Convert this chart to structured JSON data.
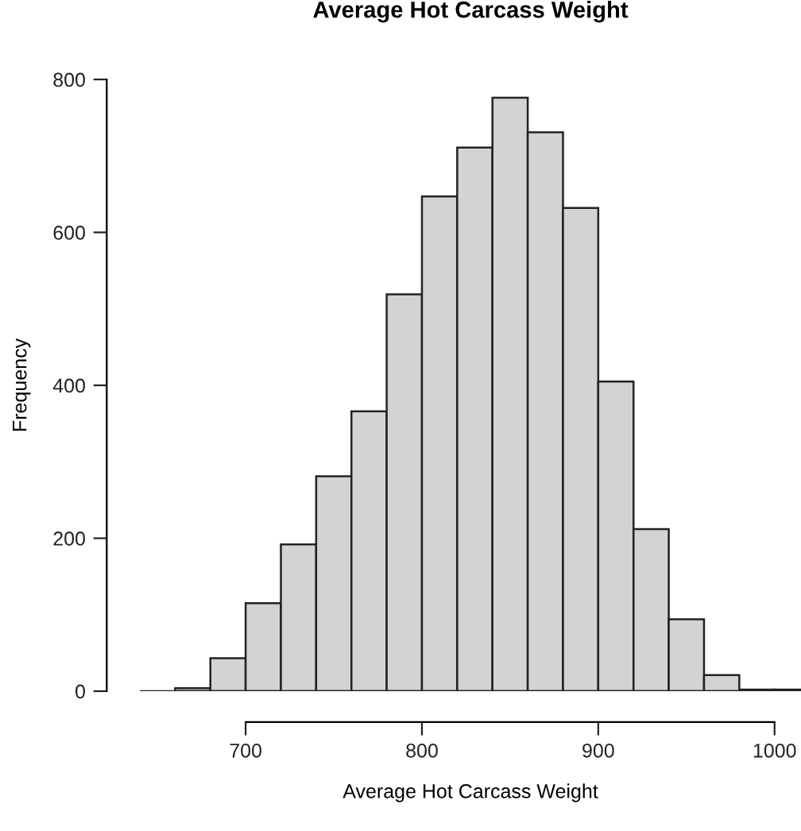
{
  "chart_data": {
    "type": "histogram",
    "title": "Average Hot Carcass Weight",
    "xlabel": "Average Hot Carcass Weight",
    "ylabel": "Frequency",
    "bins": [
      660,
      680,
      700,
      720,
      740,
      760,
      780,
      800,
      820,
      840,
      860,
      880,
      900,
      920,
      940,
      960,
      980,
      1000,
      1020
    ],
    "values": [
      4,
      43,
      115,
      192,
      281,
      366,
      519,
      647,
      711,
      776,
      731,
      632,
      405,
      212,
      94,
      21,
      2,
      2
    ],
    "color": "#d3d3d3",
    "xlim": [
      640,
      1015
    ],
    "ylim": [
      0,
      800
    ],
    "xticks": [
      700,
      800,
      900,
      1000
    ],
    "yticks": [
      0,
      200,
      400,
      600,
      800
    ],
    "grid": false
  }
}
